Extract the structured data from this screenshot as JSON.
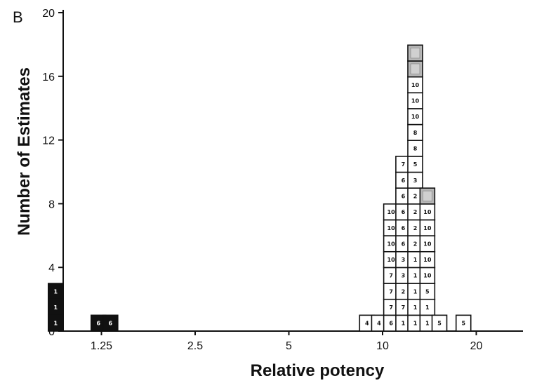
{
  "panel_label": "B",
  "chart_data": {
    "type": "histogram",
    "xlabel": "Relative potency",
    "ylabel": "Number of Estimates",
    "x_scale": "log",
    "x_ticks": [
      {
        "value": 1.25,
        "label": "1.25"
      },
      {
        "value": 2.5,
        "label": "2.5"
      },
      {
        "value": 5,
        "label": "5"
      },
      {
        "value": 10,
        "label": "10"
      },
      {
        "value": 20,
        "label": "20"
      }
    ],
    "y_ticks": [
      0,
      4,
      8,
      12,
      16,
      20
    ],
    "ylim": [
      0,
      20
    ],
    "grid": false,
    "legend": false,
    "colors": {
      "black": "#111111",
      "white": "#ffffff",
      "shaded": "#b8b8b8",
      "outline": "#111111"
    },
    "columns": [
      {
        "x": 0.891,
        "cells": [
          {
            "label": "1",
            "style": "black"
          },
          {
            "label": "1",
            "style": "black"
          },
          {
            "label": "1",
            "style": "black"
          }
        ]
      },
      {
        "x": 1.223,
        "cells": [
          {
            "label": "6",
            "style": "black"
          }
        ]
      },
      {
        "x": 1.336,
        "cells": [
          {
            "label": "6",
            "style": "black"
          }
        ]
      },
      {
        "x": 8.91,
        "cells": [
          {
            "label": "4",
            "style": "white"
          }
        ]
      },
      {
        "x": 9.74,
        "cells": [
          {
            "label": "4",
            "style": "white"
          }
        ]
      },
      {
        "x": 10.65,
        "cells": [
          {
            "label": "6",
            "style": "white"
          },
          {
            "label": "7",
            "style": "white"
          },
          {
            "label": "7",
            "style": "white"
          },
          {
            "label": "7",
            "style": "white"
          },
          {
            "label": "10",
            "style": "white"
          },
          {
            "label": "10",
            "style": "white"
          },
          {
            "label": "10",
            "style": "white"
          },
          {
            "label": "10",
            "style": "white"
          }
        ]
      },
      {
        "x": 11.65,
        "cells": [
          {
            "label": "1",
            "style": "white"
          },
          {
            "label": "7",
            "style": "white"
          },
          {
            "label": "2",
            "style": "white"
          },
          {
            "label": "3",
            "style": "white"
          },
          {
            "label": "3",
            "style": "white"
          },
          {
            "label": "6",
            "style": "white"
          },
          {
            "label": "6",
            "style": "white"
          },
          {
            "label": "6",
            "style": "white"
          },
          {
            "label": "6",
            "style": "white"
          },
          {
            "label": "6",
            "style": "white"
          },
          {
            "label": "7",
            "style": "white"
          }
        ]
      },
      {
        "x": 12.73,
        "cells": [
          {
            "label": "1",
            "style": "white"
          },
          {
            "label": "1",
            "style": "white"
          },
          {
            "label": "1",
            "style": "white"
          },
          {
            "label": "1",
            "style": "white"
          },
          {
            "label": "1",
            "style": "white"
          },
          {
            "label": "2",
            "style": "white"
          },
          {
            "label": "2",
            "style": "white"
          },
          {
            "label": "2",
            "style": "white"
          },
          {
            "label": "2",
            "style": "white"
          },
          {
            "label": "3",
            "style": "white"
          },
          {
            "label": "5",
            "style": "white"
          },
          {
            "label": "8",
            "style": "white"
          },
          {
            "label": "8",
            "style": "white"
          },
          {
            "label": "10",
            "style": "white"
          },
          {
            "label": "10",
            "style": "white"
          },
          {
            "label": "10",
            "style": "white"
          },
          {
            "label": "",
            "style": "shaded"
          },
          {
            "label": "",
            "style": "shaded"
          }
        ]
      },
      {
        "x": 13.93,
        "cells": [
          {
            "label": "1",
            "style": "white"
          },
          {
            "label": "1",
            "style": "white"
          },
          {
            "label": "5",
            "style": "white"
          },
          {
            "label": "10",
            "style": "white"
          },
          {
            "label": "10",
            "style": "white"
          },
          {
            "label": "10",
            "style": "white"
          },
          {
            "label": "10",
            "style": "white"
          },
          {
            "label": "10",
            "style": "white"
          },
          {
            "label": "",
            "style": "shaded"
          }
        ]
      },
      {
        "x": 15.23,
        "cells": [
          {
            "label": "5",
            "style": "white"
          }
        ]
      },
      {
        "x": 18.19,
        "cells": [
          {
            "label": "5",
            "style": "white"
          }
        ]
      }
    ]
  }
}
